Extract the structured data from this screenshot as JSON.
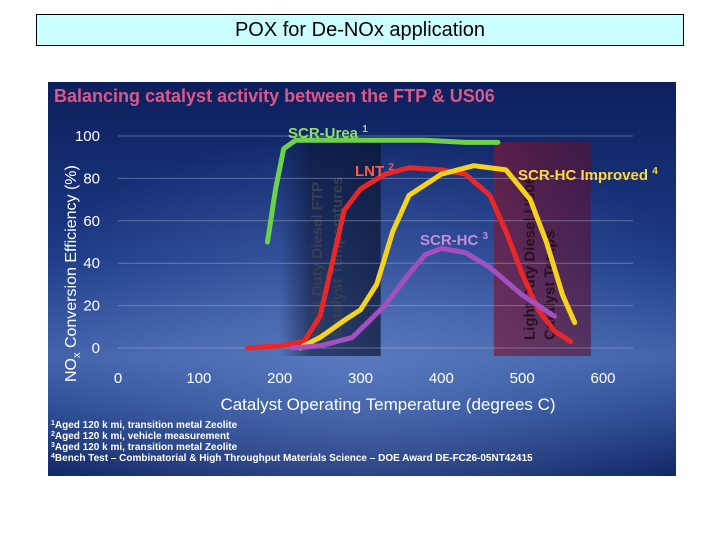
{
  "slide": {
    "title": "POX for De-NOx application"
  },
  "chart_data": {
    "type": "line",
    "title": "Balancing catalyst activity between the FTP & US06",
    "xlabel": "Catalyst Operating Temperature (degrees C)",
    "ylabel_main": "NO",
    "ylabel_sub": "x",
    "ylabel_rest": " Conversion Efficiency (%)",
    "xlim": [
      0,
      600
    ],
    "ylim": [
      0,
      100
    ],
    "x_ticks": [
      "0",
      "100",
      "200",
      "300",
      "400",
      "500",
      "600"
    ],
    "y_ticks": [
      "0",
      "20",
      "40",
      "60",
      "80",
      "100"
    ],
    "bands": [
      {
        "name": "Light Duty Diesel FTP Catalyst Temperatures",
        "line1": "Light Duty Diesel FTP",
        "line2": "Catalyst Temperatures",
        "x_range": [
          200,
          325
        ]
      },
      {
        "name": "Light Duty Diesel US06 Catalyst Temps",
        "line1": "Light Duty Diesel US06",
        "line2": "Catalyst Temps",
        "x_range": [
          465,
          585
        ]
      }
    ],
    "series": [
      {
        "name": "SCR-Urea",
        "sup": "1",
        "color": "#6cd24a",
        "x": [
          185,
          195,
          205,
          220,
          240,
          280,
          320,
          380,
          430,
          470
        ],
        "y": [
          50,
          75,
          94,
          98,
          98,
          98,
          98,
          98,
          97,
          97
        ]
      },
      {
        "name": "LNT",
        "sup": "2",
        "color": "#e82828",
        "x": [
          160,
          200,
          230,
          250,
          265,
          280,
          300,
          330,
          360,
          400,
          430,
          460,
          480,
          500,
          520,
          540,
          560
        ],
        "y": [
          0,
          1,
          3,
          15,
          40,
          65,
          75,
          82,
          85,
          84,
          82,
          72,
          55,
          35,
          18,
          8,
          3
        ]
      },
      {
        "name": "SCR-HC Improved",
        "sup": "4",
        "color": "#f5d21e",
        "x": [
          225,
          250,
          280,
          300,
          320,
          340,
          360,
          400,
          440,
          480,
          510,
          530,
          550,
          565
        ],
        "y": [
          0,
          5,
          13,
          18,
          30,
          55,
          72,
          82,
          86,
          84,
          70,
          50,
          25,
          12
        ]
      },
      {
        "name": "SCR-HC",
        "sup": "3",
        "color": "#a24fc0",
        "x": [
          215,
          250,
          290,
          330,
          360,
          380,
          400,
          430,
          460,
          500,
          540
        ],
        "y": [
          0,
          1,
          5,
          20,
          35,
          44,
          47,
          45,
          38,
          25,
          15
        ]
      }
    ],
    "footnotes": [
      {
        "sup": "1",
        "text": "Aged 120 k mi, transition metal Zeolite"
      },
      {
        "sup": "2",
        "text": "Aged 120 k mi, vehicle measurement"
      },
      {
        "sup": "3",
        "text": "Aged 120 k mi, transition metal Zeolite"
      },
      {
        "sup": "4",
        "text": "Bench Test  – Combinatorial & High Throughput Materials Science – DOE Award  DE-FC26-05NT42415"
      }
    ]
  }
}
